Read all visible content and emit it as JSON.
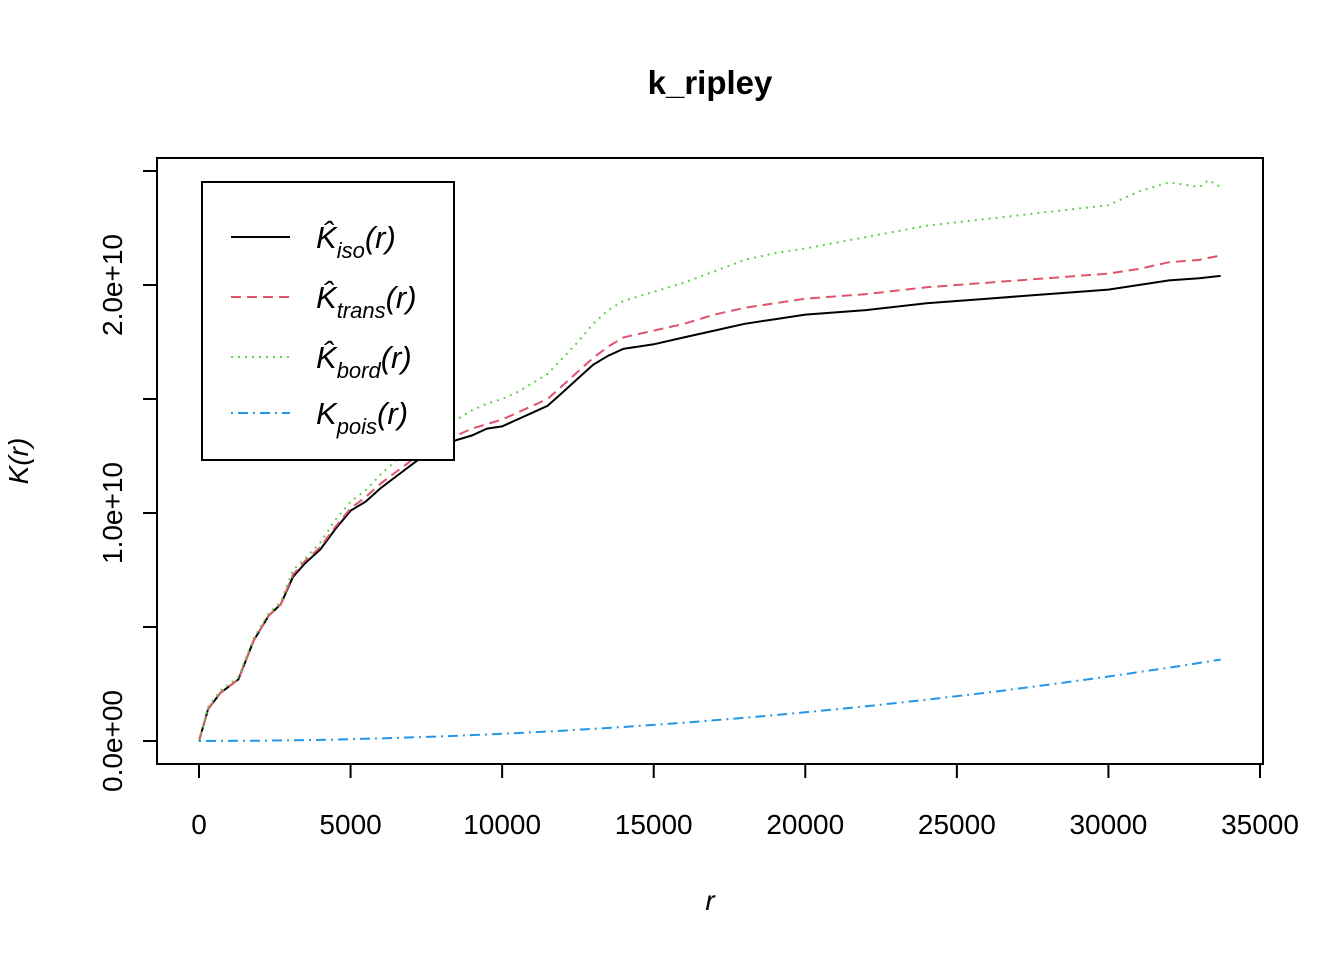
{
  "chart_data": {
    "type": "line",
    "title": "k_ripley",
    "xlabel": "r",
    "ylabel": "K(r)",
    "xlim": [
      0,
      35000
    ],
    "ylim": [
      0,
      25000000000
    ],
    "x_ticks": [
      0,
      5000,
      10000,
      15000,
      20000,
      25000,
      30000,
      35000
    ],
    "x_tick_labels": [
      "0",
      "5000",
      "10000",
      "15000",
      "20000",
      "25000",
      "30000",
      "35000"
    ],
    "y_ticks": [
      0,
      5000000000,
      10000000000,
      15000000000,
      20000000000,
      25000000000
    ],
    "y_tick_labels": [
      "0.0e+00",
      "",
      "1.0e+10",
      "",
      "2.0e+10",
      ""
    ],
    "grid": false,
    "legend_position": "top-left",
    "series": [
      {
        "name": "K̂iso(r)",
        "legend_base": "K̂",
        "legend_sub": "iso",
        "legend_suffix": "(r)",
        "color": "#000000",
        "dash": "solid",
        "points": [
          [
            0,
            0
          ],
          [
            300,
            1400000000
          ],
          [
            700,
            2100000000
          ],
          [
            1300,
            2700000000
          ],
          [
            1800,
            4400000000
          ],
          [
            2300,
            5500000000
          ],
          [
            2700,
            6000000000
          ],
          [
            3100,
            7200000000
          ],
          [
            3500,
            7800000000
          ],
          [
            4000,
            8400000000
          ],
          [
            4500,
            9300000000
          ],
          [
            5000,
            10100000000
          ],
          [
            5500,
            10500000000
          ],
          [
            6000,
            11100000000
          ],
          [
            6500,
            11600000000
          ],
          [
            7000,
            12100000000
          ],
          [
            7500,
            12600000000
          ],
          [
            8000,
            12900000000
          ],
          [
            8500,
            13200000000
          ],
          [
            9000,
            13400000000
          ],
          [
            9500,
            13700000000
          ],
          [
            10000,
            13800000000
          ],
          [
            10500,
            14100000000
          ],
          [
            11000,
            14400000000
          ],
          [
            11500,
            14700000000
          ],
          [
            12000,
            15300000000
          ],
          [
            12500,
            15900000000
          ],
          [
            13000,
            16500000000
          ],
          [
            13500,
            16900000000
          ],
          [
            14000,
            17200000000
          ],
          [
            15000,
            17400000000
          ],
          [
            16000,
            17700000000
          ],
          [
            17000,
            18000000000
          ],
          [
            18000,
            18300000000
          ],
          [
            19000,
            18500000000
          ],
          [
            20000,
            18700000000
          ],
          [
            22000,
            18900000000
          ],
          [
            24000,
            19200000000
          ],
          [
            26000,
            19400000000
          ],
          [
            28000,
            19600000000
          ],
          [
            30000,
            19800000000
          ],
          [
            31000,
            20000000000
          ],
          [
            32000,
            20200000000
          ],
          [
            33000,
            20300000000
          ],
          [
            33700,
            20400000000
          ]
        ]
      },
      {
        "name": "K̂trans(r)",
        "legend_base": "K̂",
        "legend_sub": "trans",
        "legend_suffix": "(r)",
        "color": "#DF536B",
        "dash": "dashed",
        "points": [
          [
            0,
            0
          ],
          [
            300,
            1400000000
          ],
          [
            700,
            2100000000
          ],
          [
            1300,
            2700000000
          ],
          [
            1800,
            4400000000
          ],
          [
            2300,
            5500000000
          ],
          [
            2700,
            6000000000
          ],
          [
            3100,
            7300000000
          ],
          [
            3500,
            7900000000
          ],
          [
            4000,
            8500000000
          ],
          [
            4500,
            9400000000
          ],
          [
            5000,
            10200000000
          ],
          [
            5500,
            10700000000
          ],
          [
            6000,
            11300000000
          ],
          [
            6500,
            11800000000
          ],
          [
            7000,
            12300000000
          ],
          [
            7500,
            12800000000
          ],
          [
            8000,
            13100000000
          ],
          [
            8500,
            13400000000
          ],
          [
            9000,
            13700000000
          ],
          [
            9500,
            13900000000
          ],
          [
            10000,
            14100000000
          ],
          [
            10500,
            14400000000
          ],
          [
            11000,
            14700000000
          ],
          [
            11500,
            15000000000
          ],
          [
            12000,
            15600000000
          ],
          [
            12500,
            16200000000
          ],
          [
            13000,
            16800000000
          ],
          [
            13500,
            17300000000
          ],
          [
            14000,
            17700000000
          ],
          [
            15000,
            18000000000
          ],
          [
            16000,
            18300000000
          ],
          [
            17000,
            18700000000
          ],
          [
            18000,
            19000000000
          ],
          [
            19000,
            19200000000
          ],
          [
            20000,
            19400000000
          ],
          [
            22000,
            19600000000
          ],
          [
            24000,
            19900000000
          ],
          [
            26000,
            20100000000
          ],
          [
            28000,
            20300000000
          ],
          [
            30000,
            20500000000
          ],
          [
            31000,
            20700000000
          ],
          [
            32000,
            21000000000
          ],
          [
            33000,
            21100000000
          ],
          [
            33700,
            21300000000
          ]
        ]
      },
      {
        "name": "K̂bord(r)",
        "legend_base": "K̂",
        "legend_sub": "bord",
        "legend_suffix": "(r)",
        "color": "#61D04F",
        "dash": "dotted",
        "points": [
          [
            0,
            0
          ],
          [
            300,
            1500000000
          ],
          [
            700,
            2200000000
          ],
          [
            1300,
            2800000000
          ],
          [
            1800,
            4500000000
          ],
          [
            2300,
            5600000000
          ],
          [
            2700,
            6100000000
          ],
          [
            3100,
            7500000000
          ],
          [
            3500,
            8000000000
          ],
          [
            4000,
            8700000000
          ],
          [
            4500,
            9700000000
          ],
          [
            5000,
            10500000000
          ],
          [
            5500,
            11000000000
          ],
          [
            6000,
            11700000000
          ],
          [
            6500,
            12300000000
          ],
          [
            7000,
            12800000000
          ],
          [
            7500,
            13300000000
          ],
          [
            8000,
            13700000000
          ],
          [
            8500,
            14100000000
          ],
          [
            9000,
            14500000000
          ],
          [
            9500,
            14800000000
          ],
          [
            10000,
            15000000000
          ],
          [
            10500,
            15300000000
          ],
          [
            11000,
            15700000000
          ],
          [
            11500,
            16100000000
          ],
          [
            12000,
            16800000000
          ],
          [
            12500,
            17500000000
          ],
          [
            13000,
            18300000000
          ],
          [
            13500,
            18900000000
          ],
          [
            14000,
            19300000000
          ],
          [
            15000,
            19700000000
          ],
          [
            16000,
            20100000000
          ],
          [
            17000,
            20600000000
          ],
          [
            18000,
            21100000000
          ],
          [
            19000,
            21400000000
          ],
          [
            20000,
            21600000000
          ],
          [
            22000,
            22100000000
          ],
          [
            24000,
            22600000000
          ],
          [
            26000,
            22900000000
          ],
          [
            28000,
            23200000000
          ],
          [
            30000,
            23500000000
          ],
          [
            31000,
            24100000000
          ],
          [
            32000,
            24500000000
          ],
          [
            32500,
            24400000000
          ],
          [
            33000,
            24300000000
          ],
          [
            33300,
            24600000000
          ],
          [
            33700,
            24300000000
          ]
        ]
      },
      {
        "name": "Kpois(r)",
        "legend_base": "K",
        "legend_sub": "pois",
        "legend_suffix": "(r)",
        "color": "#2297E6",
        "dash": "dotdash",
        "points": [
          [
            0,
            0
          ],
          [
            2000,
            12600000
          ],
          [
            4000,
            50300000
          ],
          [
            6000,
            113000000
          ],
          [
            8000,
            201000000
          ],
          [
            10000,
            314000000
          ],
          [
            12000,
            452000000
          ],
          [
            14000,
            616000000
          ],
          [
            16000,
            804000000
          ],
          [
            18000,
            1018000000
          ],
          [
            20000,
            1257000000
          ],
          [
            22000,
            1521000000
          ],
          [
            24000,
            1810000000
          ],
          [
            26000,
            2124000000
          ],
          [
            28000,
            2463000000
          ],
          [
            30000,
            2827000000
          ],
          [
            32000,
            3217000000
          ],
          [
            33700,
            3568000000
          ]
        ]
      }
    ]
  }
}
